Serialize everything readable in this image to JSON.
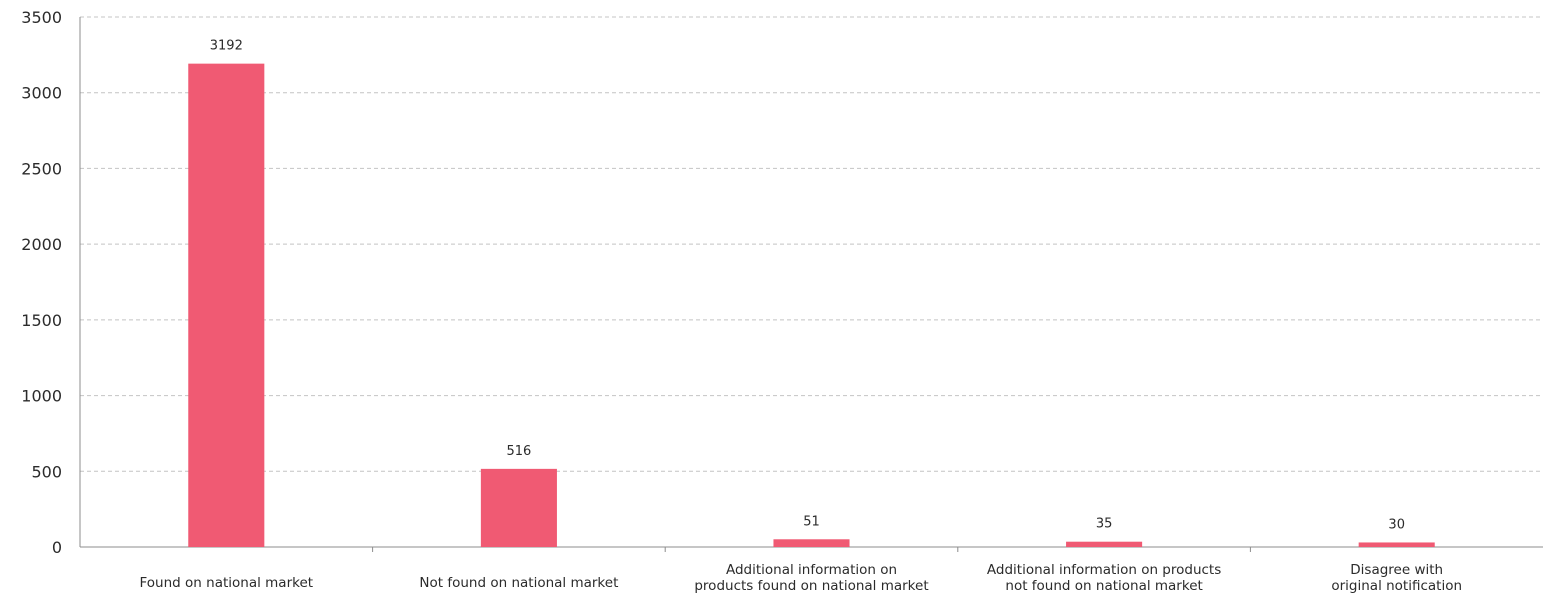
{
  "chart_data": {
    "type": "bar",
    "title": "",
    "xlabel": "",
    "ylabel": "",
    "categories": [
      [
        "Found on national market"
      ],
      [
        "Not found on national market"
      ],
      [
        "Additional information on",
        "products found on national market"
      ],
      [
        "Additional information on products",
        "not found on national market"
      ],
      [
        "Disagree with",
        "original notification"
      ]
    ],
    "values": [
      3192,
      516,
      51,
      35,
      30
    ],
    "ylim": [
      0,
      3500
    ],
    "yticks": [
      0,
      500,
      1000,
      1500,
      2000,
      2500,
      3000,
      3500
    ],
    "grid": true,
    "grid_style": "dashed",
    "data_labels": true,
    "legend": "none"
  },
  "colors": {
    "bar": "#f05a73",
    "grid": "#c4c4c4",
    "axis": "#8c8c8c",
    "text": "#2b2b2b"
  }
}
